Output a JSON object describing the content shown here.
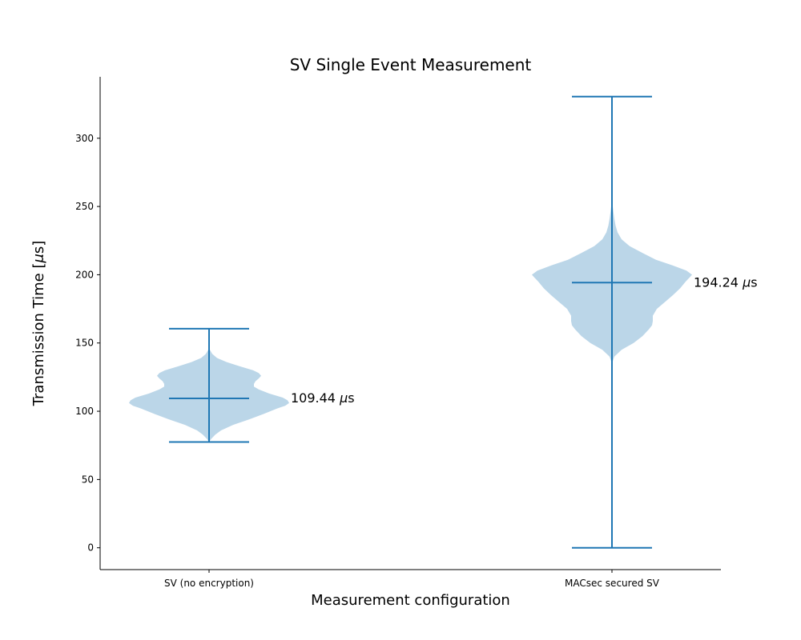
{
  "chart_data": {
    "type": "violin",
    "title": "SV Single Event Measurement",
    "xlabel": "Measurement configuration",
    "ylabel_text": "Transmission Time [",
    "ylabel_mu": "μ",
    "ylabel_close": "s]",
    "ylim": [
      -16,
      345
    ],
    "yticks": [
      0,
      50,
      100,
      150,
      200,
      250,
      300
    ],
    "grid": false,
    "colors": {
      "body": "#1f77b4",
      "body_alpha": 0.3,
      "lines": "#1f77b4"
    },
    "violins": [
      {
        "category": "SV (no encryption)",
        "min": 77.5,
        "max": 160.5,
        "mean": 109.44,
        "annotation_value": "109.44 ",
        "annotation_mu": "μ",
        "annotation_unit": "s",
        "profile": [
          [
            77.5,
            0.0
          ],
          [
            80,
            0.03
          ],
          [
            83,
            0.08
          ],
          [
            86,
            0.15
          ],
          [
            90,
            0.3
          ],
          [
            94,
            0.5
          ],
          [
            98,
            0.68
          ],
          [
            102,
            0.85
          ],
          [
            104,
            0.95
          ],
          [
            106,
            1.0
          ],
          [
            108,
            0.98
          ],
          [
            110,
            0.92
          ],
          [
            113,
            0.75
          ],
          [
            116,
            0.62
          ],
          [
            118,
            0.56
          ],
          [
            120,
            0.56
          ],
          [
            122,
            0.58
          ],
          [
            124,
            0.62
          ],
          [
            126,
            0.65
          ],
          [
            128,
            0.62
          ],
          [
            130,
            0.55
          ],
          [
            133,
            0.38
          ],
          [
            136,
            0.22
          ],
          [
            139,
            0.1
          ],
          [
            142,
            0.04
          ],
          [
            145,
            0.01
          ],
          [
            150,
            0.0
          ]
        ]
      },
      {
        "category": "MACsec secured SV",
        "min": 0,
        "max": 330.5,
        "mean": 194.24,
        "annotation_value": "194.24 ",
        "annotation_mu": "μ",
        "annotation_unit": "s",
        "profile": [
          [
            0,
            0.0
          ],
          [
            135,
            0.0
          ],
          [
            140,
            0.03
          ],
          [
            145,
            0.12
          ],
          [
            150,
            0.27
          ],
          [
            155,
            0.38
          ],
          [
            160,
            0.46
          ],
          [
            163,
            0.5
          ],
          [
            166,
            0.51
          ],
          [
            170,
            0.51
          ],
          [
            175,
            0.56
          ],
          [
            180,
            0.66
          ],
          [
            185,
            0.76
          ],
          [
            190,
            0.85
          ],
          [
            195,
            0.92
          ],
          [
            198,
            0.97
          ],
          [
            200,
            1.0
          ],
          [
            203,
            0.93
          ],
          [
            207,
            0.75
          ],
          [
            211,
            0.55
          ],
          [
            216,
            0.38
          ],
          [
            221,
            0.22
          ],
          [
            226,
            0.12
          ],
          [
            231,
            0.07
          ],
          [
            236,
            0.045
          ],
          [
            241,
            0.03
          ],
          [
            246,
            0.018
          ],
          [
            251,
            0.008
          ],
          [
            256,
            0.003
          ],
          [
            261,
            0.0
          ],
          [
            330.5,
            0.0
          ]
        ]
      }
    ]
  }
}
